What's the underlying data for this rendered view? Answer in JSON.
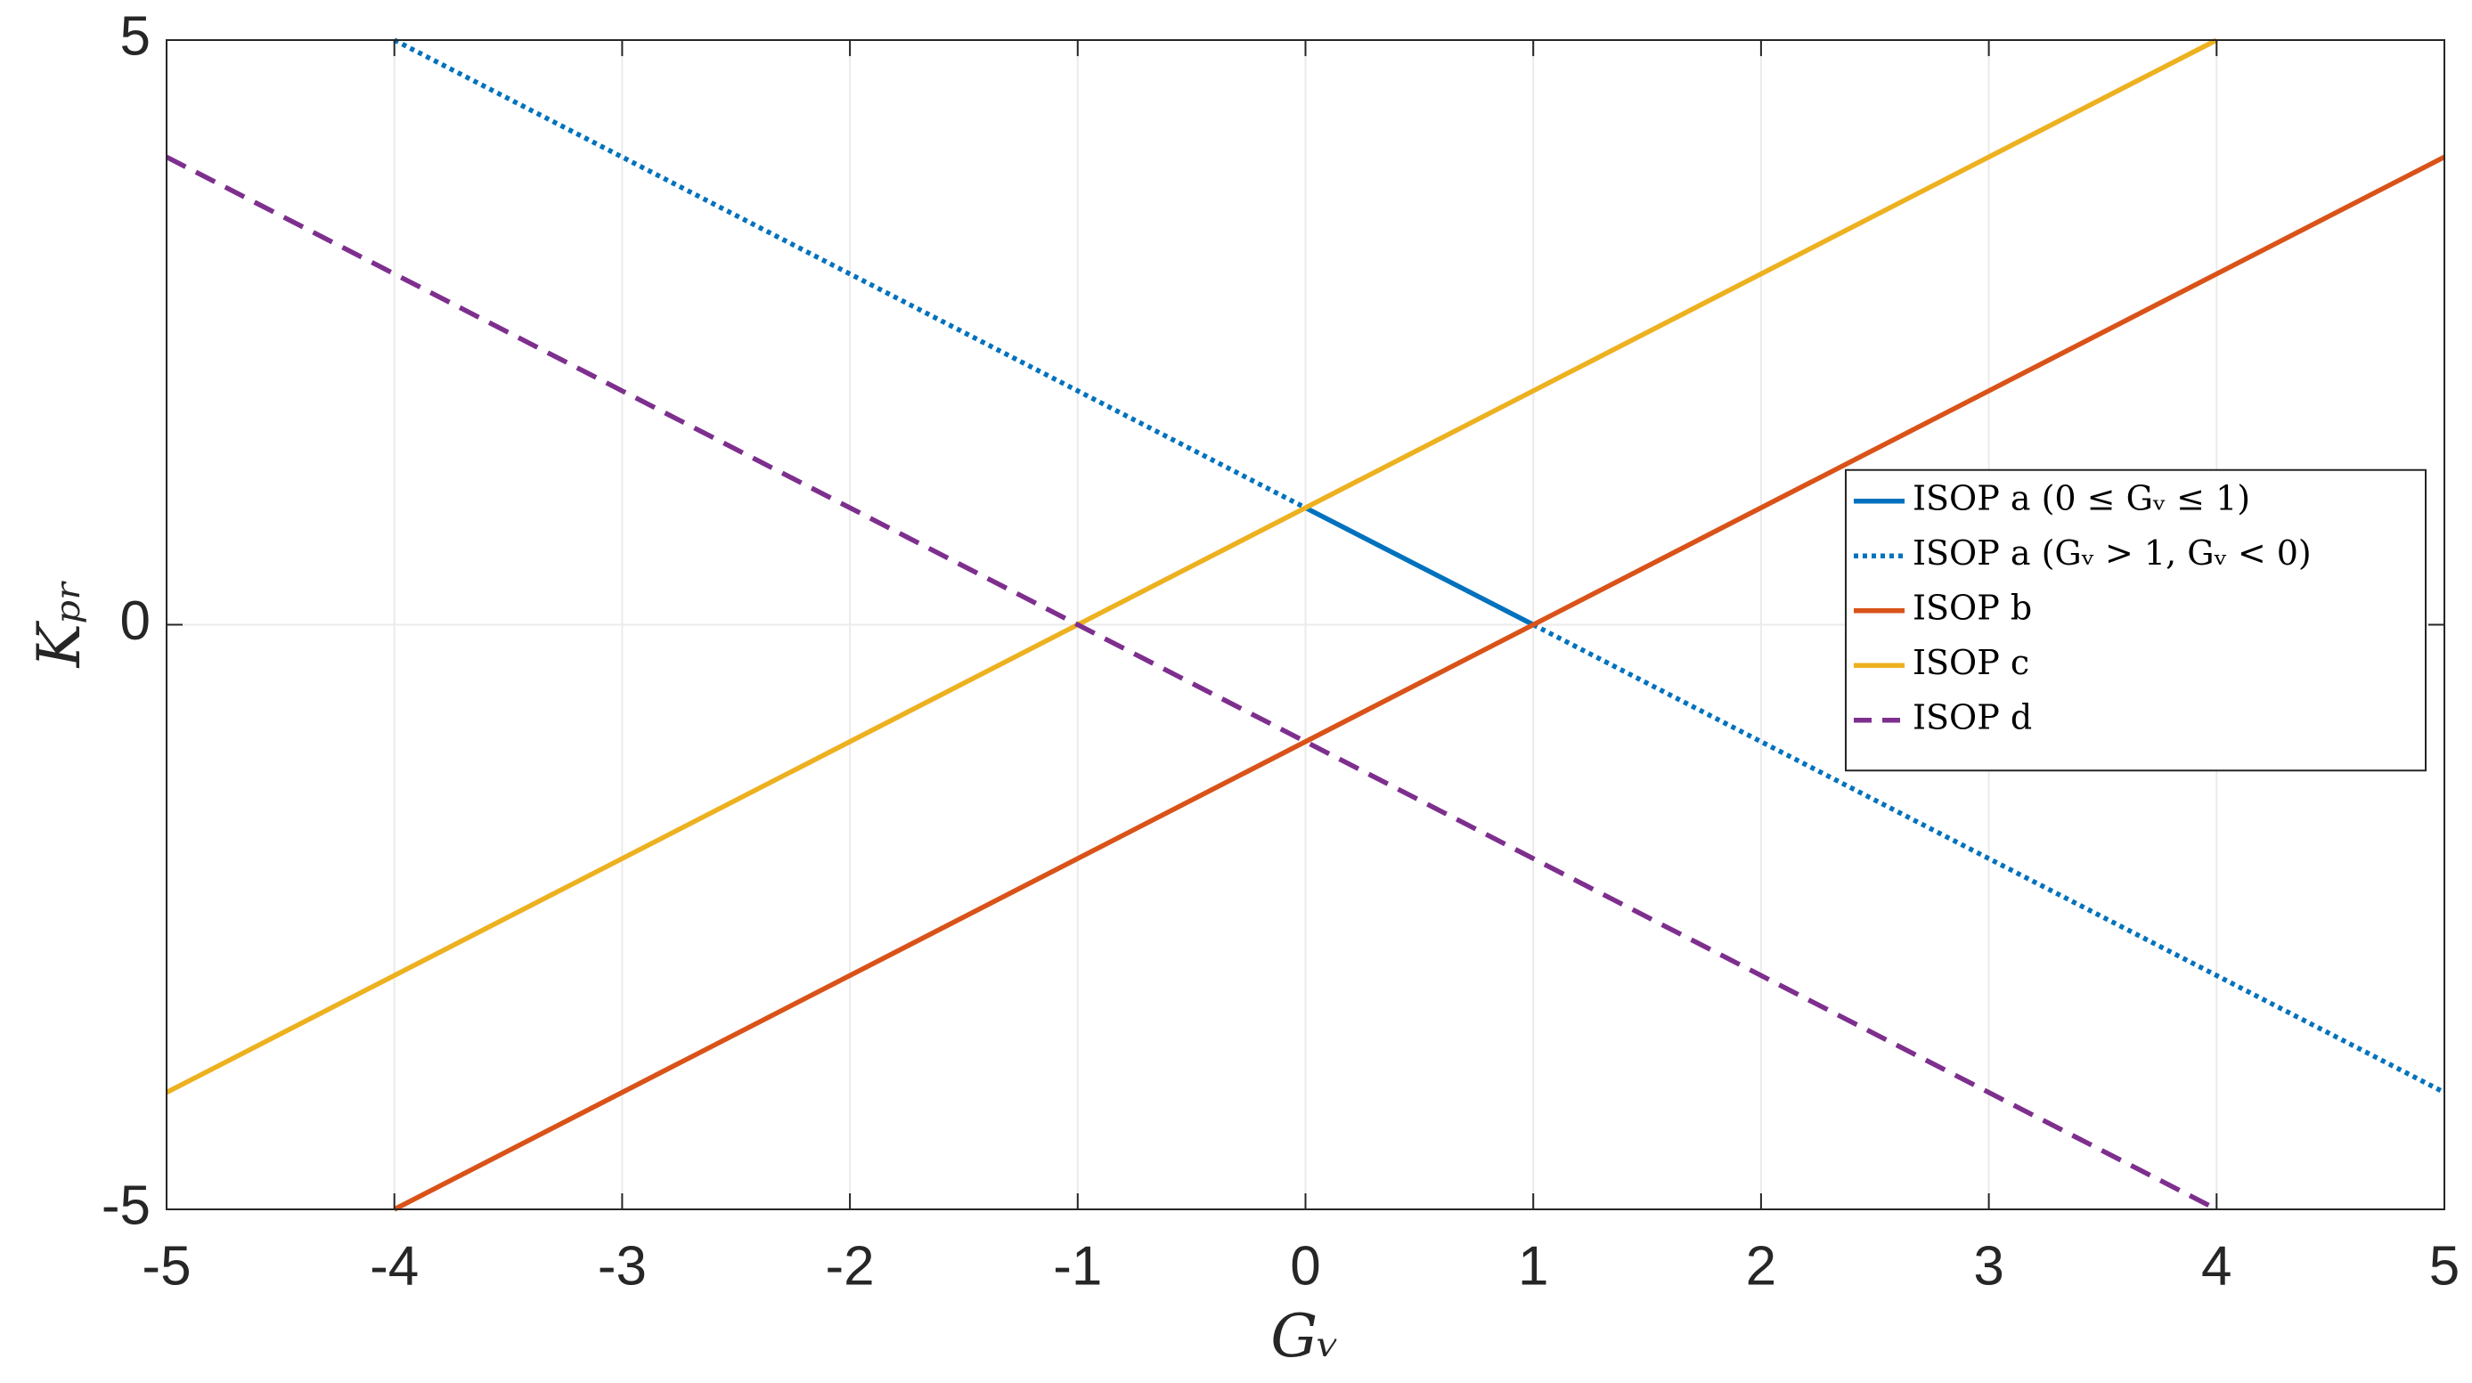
{
  "chart_data": {
    "type": "line",
    "x_label": "Gᵥ",
    "y_label": "Kₚᵣ",
    "xlim": [
      -5,
      5
    ],
    "ylim": [
      -5,
      5
    ],
    "xticks": [
      -5,
      -4,
      -3,
      -2,
      -1,
      0,
      1,
      2,
      3,
      4,
      5
    ],
    "yticks": [
      -5,
      0,
      5
    ],
    "grid": true,
    "legend_loc": "east",
    "series": [
      {
        "name": "ISOP a (0 ≤ Gᵥ ≤ 1)",
        "color": "#0072BD",
        "style": "solid",
        "x": [
          0,
          1
        ],
        "values": [
          1,
          0
        ]
      },
      {
        "name": "ISOP a (Gᵥ > 1, Gᵥ < 0)",
        "color": "#0072BD",
        "style": "dotted",
        "x": [
          -4,
          0,
          null,
          1,
          5
        ],
        "values": [
          5,
          1,
          null,
          0,
          -4
        ]
      },
      {
        "name": "ISOP b",
        "color": "#D95319",
        "style": "solid",
        "x": [
          -4,
          5
        ],
        "values": [
          -5,
          4
        ]
      },
      {
        "name": "ISOP c",
        "color": "#EDB120",
        "style": "solid",
        "x": [
          -5,
          4
        ],
        "values": [
          -4,
          5
        ]
      },
      {
        "name": "ISOP d",
        "color": "#7E2F8E",
        "style": "dashed",
        "x": [
          -5,
          4
        ],
        "values": [
          4,
          -5
        ]
      }
    ]
  }
}
